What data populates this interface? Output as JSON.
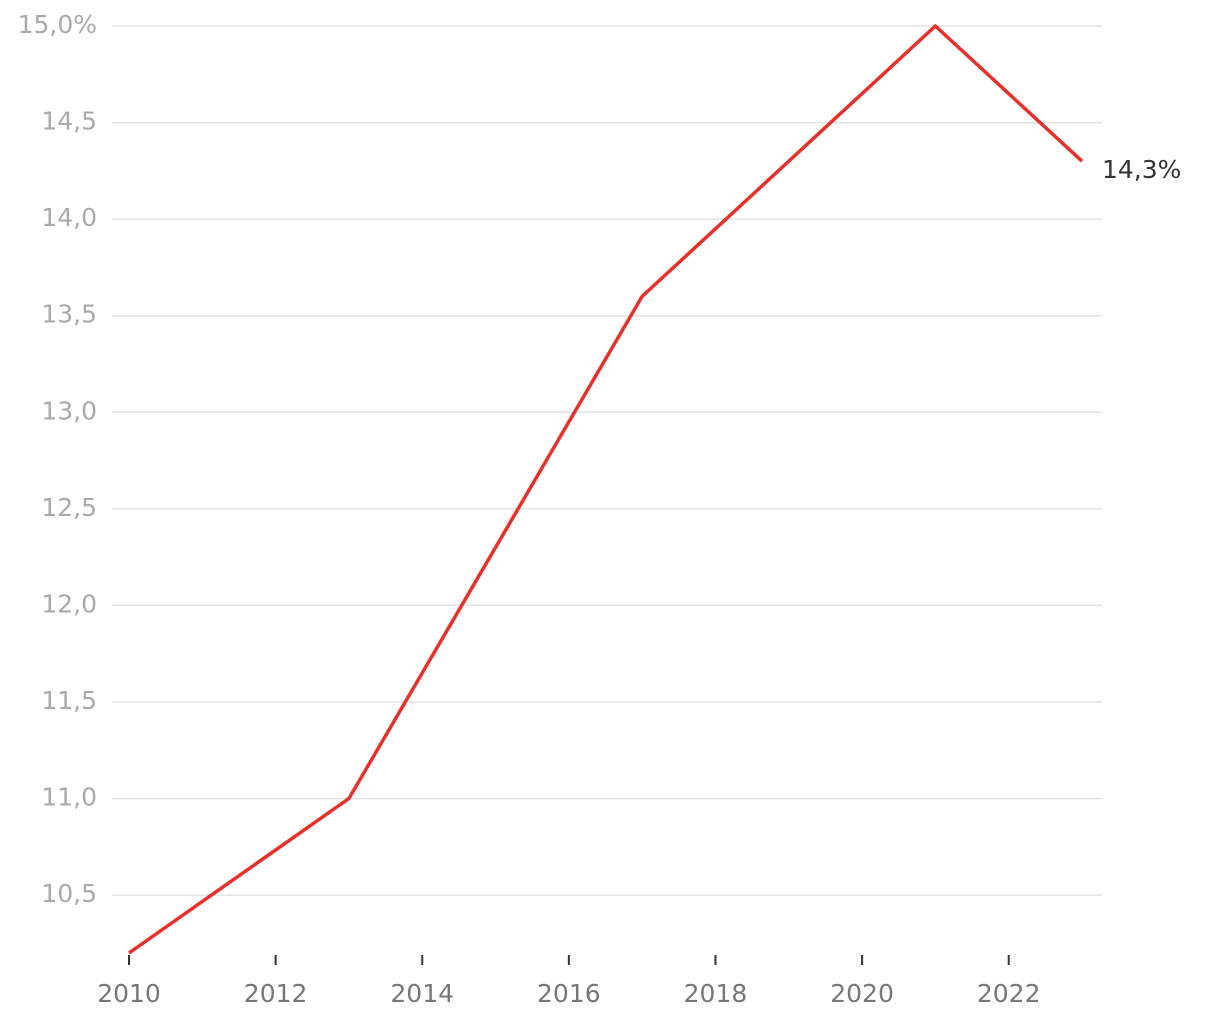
{
  "chart_data": {
    "type": "line",
    "x": [
      2010,
      2013,
      2017,
      2021,
      2023
    ],
    "series": [
      {
        "color": "#e8302a",
        "values": [
          10.2,
          11.0,
          13.6,
          15.0,
          14.3
        ],
        "value_labels": [
          null,
          null,
          null,
          null,
          "14,3%"
        ]
      }
    ],
    "xlim": [
      2010,
      2023
    ],
    "xticks": [
      2010,
      2012,
      2014,
      2016,
      2018,
      2020,
      2022
    ],
    "ylim": [
      10.2,
      15.0
    ],
    "yticks": [
      {
        "value": 10.5,
        "label": "10,5"
      },
      {
        "value": 11.0,
        "label": "11,0"
      },
      {
        "value": 11.5,
        "label": "11,5"
      },
      {
        "value": 12.0,
        "label": "12,0"
      },
      {
        "value": 12.5,
        "label": "12,5"
      },
      {
        "value": 13.0,
        "label": "13,0"
      },
      {
        "value": 13.5,
        "label": "13,5"
      },
      {
        "value": 14.0,
        "label": "14,0"
      },
      {
        "value": 14.5,
        "label": "14,5"
      },
      {
        "value": 15.0,
        "label": "15,0%"
      }
    ],
    "grid": true
  }
}
